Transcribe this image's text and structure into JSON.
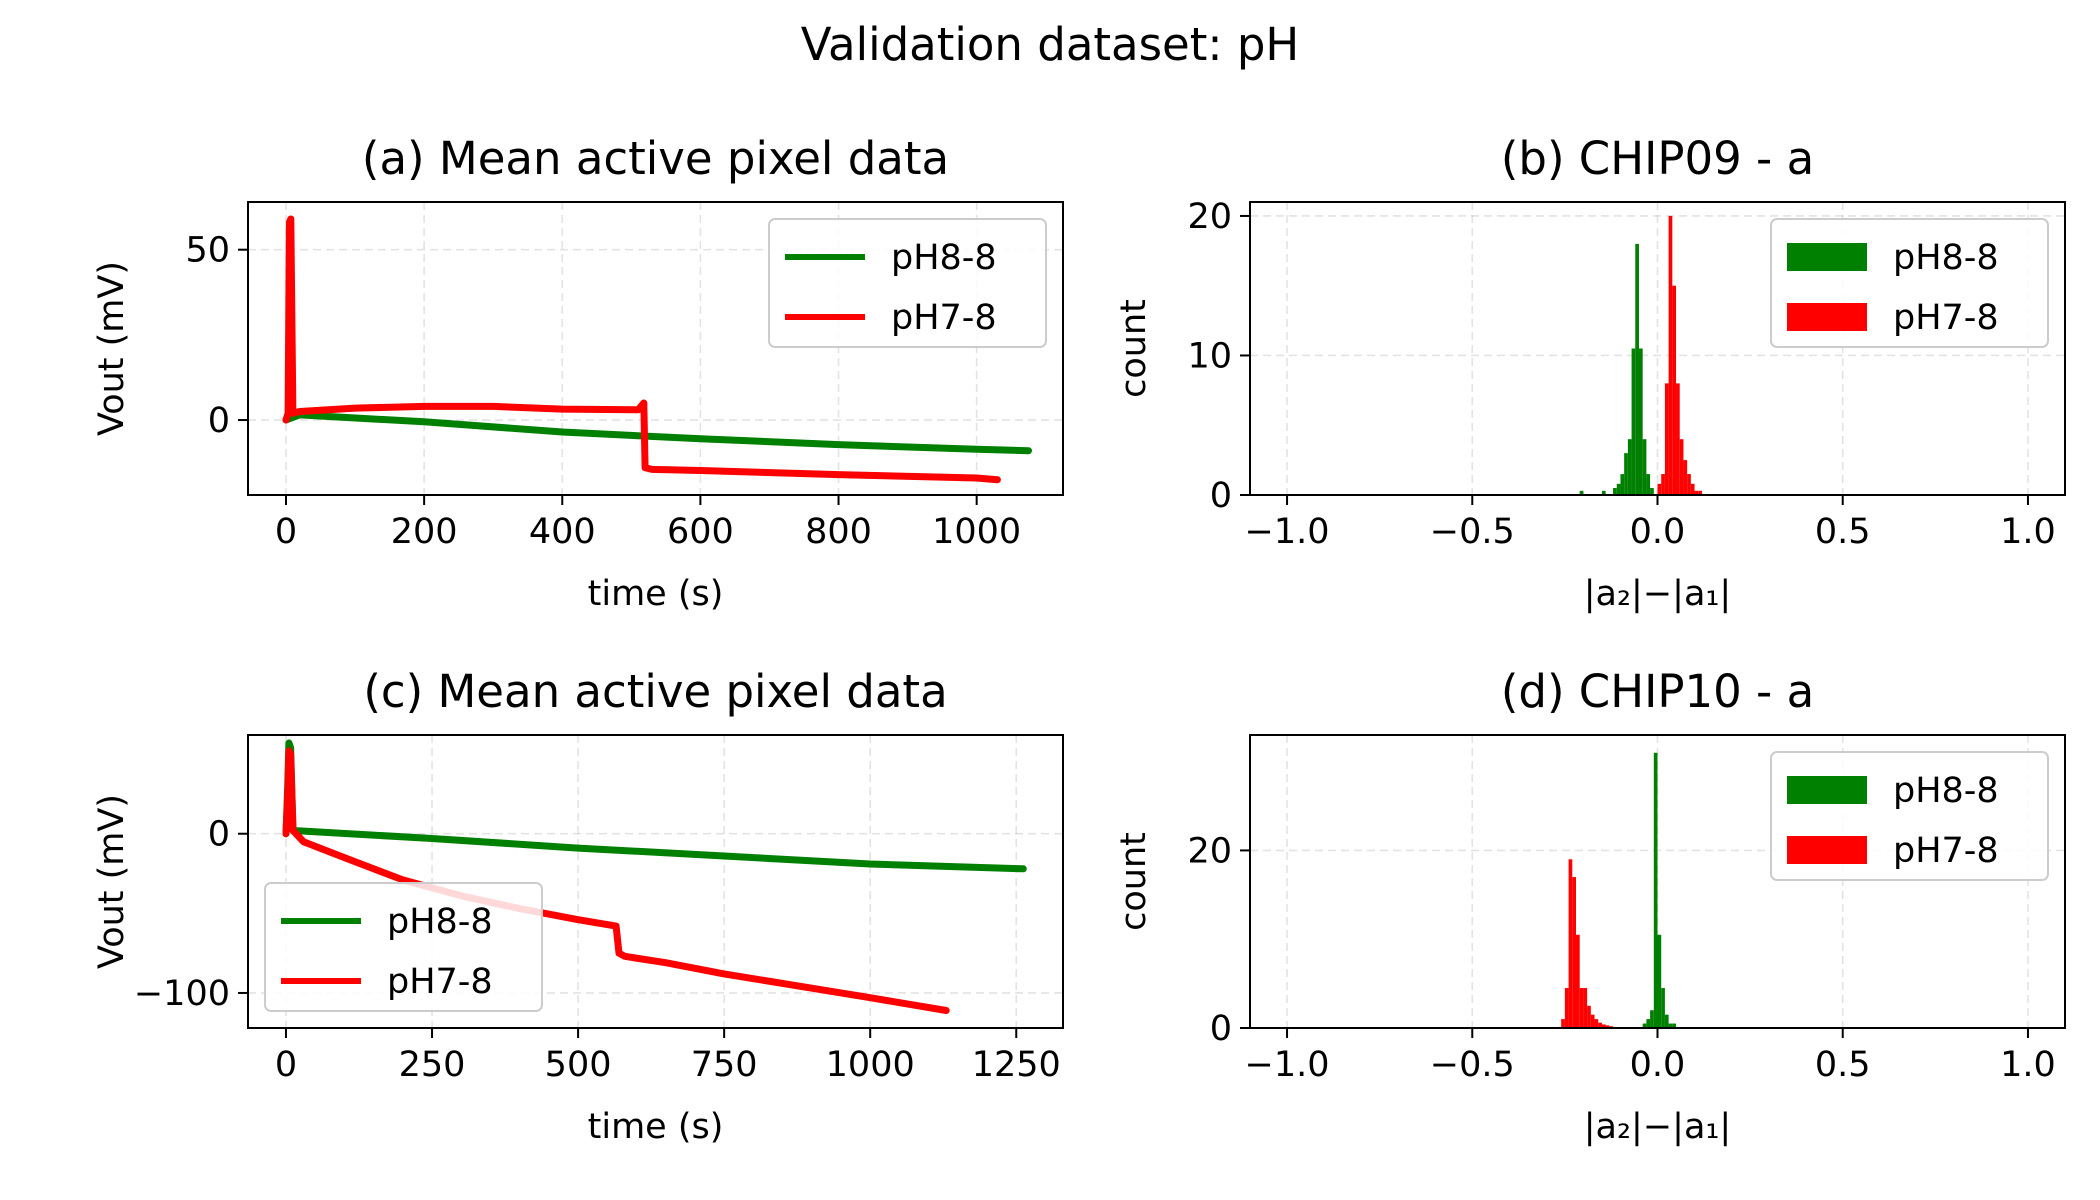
{
  "figure": {
    "title": "Validation dataset: pH"
  },
  "chart_data": [
    {
      "id": "a",
      "type": "line",
      "title": "(a) Mean active pixel data",
      "xlabel": "time (s)",
      "ylabel": "Vout (mV)",
      "xlim": [
        -55,
        1125
      ],
      "ylim": [
        -22,
        64
      ],
      "xticks": [
        0,
        200,
        400,
        600,
        800,
        1000
      ],
      "yticks": [
        0,
        50
      ],
      "grid": true,
      "legend_position": "upper right",
      "series": [
        {
          "name": "pH8-8",
          "color": "#008000",
          "x": [
            0,
            20,
            200,
            400,
            600,
            800,
            1000,
            1075
          ],
          "y": [
            0,
            1.5,
            -0.5,
            -3.5,
            -5.5,
            -7.2,
            -8.6,
            -9
          ]
        },
        {
          "name": "pH7-8",
          "color": "#ff0000",
          "x": [
            0,
            3,
            5,
            7,
            10,
            20,
            100,
            200,
            300,
            400,
            510,
            518,
            520,
            530,
            600,
            800,
            1000,
            1030
          ],
          "y": [
            0,
            2,
            58,
            59,
            2,
            2.5,
            3.5,
            4,
            4,
            3.2,
            3,
            5,
            -14,
            -14.5,
            -14.8,
            -16,
            -17,
            -17.5
          ]
        }
      ]
    },
    {
      "id": "b",
      "type": "bar",
      "title": "(b) CHIP09 - a",
      "xlabel": "|a₂|−|a₁|",
      "ylabel": "count",
      "xlim": [
        -1.1,
        1.1
      ],
      "ylim": [
        0,
        21
      ],
      "xticks": [
        -1.0,
        -0.5,
        0.0,
        0.5,
        1.0
      ],
      "yticks": [
        0,
        10,
        20
      ],
      "grid": true,
      "legend_position": "upper right",
      "bin_width": 0.01,
      "series": [
        {
          "name": "pH8-8",
          "color": "#008000",
          "bins": [
            -0.21,
            -0.15,
            -0.12,
            -0.11,
            -0.1,
            -0.09,
            -0.08,
            -0.07,
            -0.06,
            -0.05,
            -0.04,
            -0.03,
            -0.02
          ],
          "counts": [
            0.3,
            0.3,
            0.5,
            0.8,
            1.5,
            3,
            4,
            10.5,
            18,
            10.5,
            4,
            1.5,
            0.5
          ]
        },
        {
          "name": "pH7-8",
          "color": "#ff0000",
          "bins": [
            0.0,
            0.01,
            0.02,
            0.03,
            0.04,
            0.05,
            0.06,
            0.07,
            0.08,
            0.09,
            0.1,
            0.11
          ],
          "counts": [
            0.8,
            1.5,
            8,
            20,
            15,
            8,
            4,
            2.5,
            1.5,
            0.8,
            0.3,
            0.3
          ]
        }
      ]
    },
    {
      "id": "c",
      "type": "line",
      "title": "(c) Mean active pixel data",
      "xlabel": "time (s)",
      "ylabel": "Vout (mV)",
      "xlim": [
        -65,
        1330
      ],
      "ylim": [
        -122,
        62
      ],
      "xticks": [
        0,
        250,
        500,
        750,
        1000,
        1250
      ],
      "yticks": [
        0,
        -100
      ],
      "grid": true,
      "legend_position": "lower left",
      "series": [
        {
          "name": "pH8-8",
          "color": "#008000",
          "x": [
            0,
            3,
            5,
            8,
            12,
            250,
            500,
            750,
            1000,
            1262
          ],
          "y": [
            0,
            30,
            57,
            54,
            2,
            -3,
            -9,
            -14,
            -19,
            -22
          ]
        },
        {
          "name": "pH7-8",
          "color": "#ff0000",
          "x": [
            0,
            3,
            5,
            8,
            12,
            30,
            100,
            200,
            300,
            400,
            500,
            565,
            570,
            580,
            650,
            750,
            900,
            1000,
            1130
          ],
          "y": [
            0,
            25,
            52,
            50,
            2,
            -5,
            -15,
            -29,
            -39,
            -47,
            -54,
            -58,
            -75,
            -77,
            -81,
            -88,
            -97,
            -103,
            -111
          ]
        }
      ]
    },
    {
      "id": "d",
      "type": "bar",
      "title": "(d) CHIP10 - a",
      "xlabel": "|a₂|−|a₁|",
      "ylabel": "count",
      "xlim": [
        -1.1,
        1.1
      ],
      "ylim": [
        0,
        33
      ],
      "xticks": [
        -1.0,
        -0.5,
        0.0,
        0.5,
        1.0
      ],
      "yticks": [
        0,
        20
      ],
      "grid": true,
      "legend_position": "upper right",
      "bin_width": 0.01,
      "series": [
        {
          "name": "pH8-8",
          "color": "#008000",
          "bins": [
            -0.04,
            -0.03,
            -0.02,
            -0.01,
            0.0,
            0.01,
            0.02,
            0.03,
            0.04
          ],
          "counts": [
            0.5,
            1,
            2,
            31,
            10.5,
            4.5,
            1.5,
            0.5,
            0.5
          ]
        },
        {
          "name": "pH7-8",
          "color": "#ff0000",
          "bins": [
            -0.26,
            -0.25,
            -0.24,
            -0.23,
            -0.22,
            -0.21,
            -0.2,
            -0.19,
            -0.18,
            -0.17,
            -0.16,
            -0.15,
            -0.14,
            -0.13
          ],
          "counts": [
            1,
            4.5,
            19,
            17,
            10.5,
            4.5,
            4.5,
            2.5,
            1.5,
            1,
            0.6,
            0.4,
            0.3,
            0.2
          ]
        }
      ]
    }
  ]
}
